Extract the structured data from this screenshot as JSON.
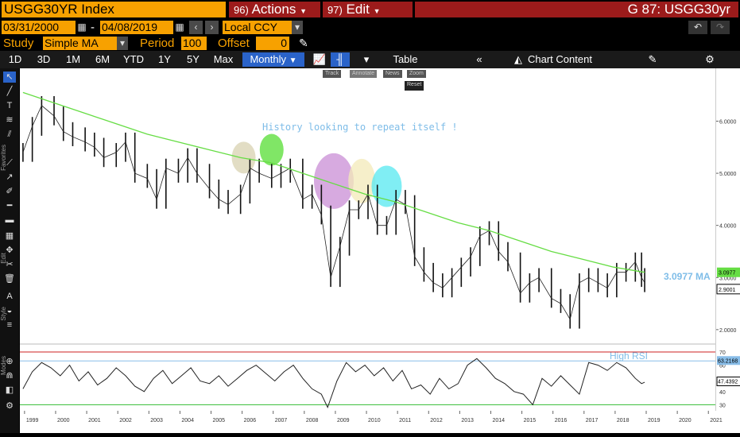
{
  "header": {
    "ticker": "USGG30YR Index",
    "actions_num": "96)",
    "actions_label": "Actions",
    "edit_num": "97)",
    "edit_label": "Edit",
    "page_title": "G 87: USGG30yr"
  },
  "date_row": {
    "start_date": "03/31/2000",
    "end_date": "04/08/2019",
    "separator": "-",
    "currency": "Local CCY"
  },
  "study_row": {
    "study_label": "Study",
    "study_value": "Simple MA",
    "period_label": "Period",
    "period_value": "100",
    "offset_label": "Offset",
    "offset_value": "0"
  },
  "toolbar": {
    "ranges": [
      "1D",
      "3D",
      "1M",
      "6M",
      "YTD",
      "1Y",
      "5Y",
      "Max"
    ],
    "frequency": "Monthly",
    "table_label": "Table",
    "chart_content_label": "Chart Content"
  },
  "mini_tools": [
    "Track",
    "Annotate",
    "News",
    "Zoom"
  ],
  "reset_label": "Reset",
  "left_labels": {
    "favorites": "Favorites",
    "edit": "Edit",
    "style": "Style",
    "modes": "Modes"
  },
  "colors": {
    "accent": "#f7a100",
    "header_red": "#9c1b1b",
    "ma": "#66dd44",
    "price": "#000000",
    "rsi": "#000000",
    "annotation_text": "#7fbde8"
  },
  "chart_data": [
    {
      "type": "line",
      "annotation": "History looking to repeat itself !",
      "ma_label": "3.0977 MA",
      "last_ma": "3.0977",
      "last_price": "2.9001",
      "yticks": [
        "6.0000",
        "5.0000",
        "4.0000",
        "3.0000",
        "2.0000"
      ],
      "ylim": [
        1.8,
        6.8
      ],
      "xticks": [
        "1999",
        "2000",
        "2001",
        "2002",
        "2003",
        "2004",
        "2005",
        "2006",
        "2007",
        "2008",
        "2009",
        "2010",
        "2011",
        "2012",
        "2013",
        "2014",
        "2015",
        "2016",
        "2017",
        "2018",
        "2019",
        "2020",
        "2021"
      ],
      "xlim": [
        1998.9,
        2021.3
      ],
      "highlights": [
        {
          "year": 2006.1,
          "value": 5.3,
          "color": "#d8d2b0"
        },
        {
          "year": 2007.0,
          "value": 5.45,
          "color": "#55dd33"
        },
        {
          "year": 2009.0,
          "value": 4.85,
          "color": "#c98ed6"
        },
        {
          "year": 2009.9,
          "value": 4.85,
          "color": "#f3e9b8"
        },
        {
          "year": 2010.7,
          "value": 4.75,
          "color": "#55e8f0"
        }
      ],
      "series": [
        {
          "name": "USGG30YR Index",
          "x": [
            1999.0,
            1999.3,
            1999.6,
            2000.0,
            2000.3,
            2000.6,
            2001.0,
            2001.3,
            2001.6,
            2002.0,
            2002.3,
            2002.6,
            2003.0,
            2003.3,
            2003.6,
            2004.0,
            2004.3,
            2004.6,
            2005.0,
            2005.3,
            2005.6,
            2006.0,
            2006.3,
            2006.6,
            2007.0,
            2007.3,
            2007.6,
            2008.0,
            2008.3,
            2008.6,
            2008.9,
            2009.2,
            2009.5,
            2009.8,
            2010.1,
            2010.4,
            2010.7,
            2011.0,
            2011.3,
            2011.6,
            2011.9,
            2012.2,
            2012.5,
            2012.8,
            2013.1,
            2013.4,
            2013.7,
            2014.0,
            2014.3,
            2014.6,
            2015.0,
            2015.3,
            2015.6,
            2016.0,
            2016.3,
            2016.6,
            2016.9,
            2017.2,
            2017.5,
            2017.8,
            2018.1,
            2018.4,
            2018.7,
            2018.9,
            2019.0
          ],
          "y": [
            5.4,
            5.9,
            6.3,
            6.1,
            5.8,
            5.7,
            5.6,
            5.5,
            5.3,
            5.4,
            5.6,
            5.0,
            4.9,
            4.5,
            5.1,
            5.0,
            5.3,
            5.0,
            4.7,
            4.5,
            4.4,
            4.6,
            5.1,
            5.0,
            4.9,
            5.0,
            5.1,
            4.5,
            4.6,
            4.2,
            3.0,
            3.6,
            4.3,
            4.3,
            4.6,
            4.0,
            4.0,
            4.5,
            4.4,
            3.4,
            3.1,
            2.9,
            2.8,
            3.0,
            3.2,
            3.4,
            3.8,
            3.9,
            3.5,
            3.3,
            2.7,
            2.9,
            3.0,
            2.6,
            2.5,
            2.2,
            2.9,
            3.0,
            2.9,
            2.8,
            3.1,
            3.1,
            3.3,
            3.0,
            2.9
          ]
        },
        {
          "name": "Simple MA 100",
          "x": [
            1999.0,
            2000.0,
            2001.0,
            2002.0,
            2003.0,
            2004.0,
            2005.0,
            2006.0,
            2007.0,
            2008.0,
            2009.0,
            2010.0,
            2011.0,
            2012.0,
            2013.0,
            2014.0,
            2015.0,
            2016.0,
            2017.0,
            2018.0,
            2019.0
          ],
          "y": [
            6.55,
            6.35,
            6.15,
            5.95,
            5.75,
            5.6,
            5.45,
            5.3,
            5.2,
            5.0,
            4.8,
            4.6,
            4.45,
            4.25,
            4.05,
            3.9,
            3.7,
            3.5,
            3.35,
            3.2,
            3.1
          ]
        }
      ]
    },
    {
      "type": "line",
      "title": "High RSI",
      "last_value": "47.4392",
      "upper_value": "63.2168",
      "yticks": [
        "70",
        "60",
        "50",
        "40",
        "30"
      ],
      "ylim": [
        26,
        73
      ],
      "xlim": [
        1998.9,
        2021.3
      ],
      "series": [
        {
          "name": "RSI",
          "x": [
            1999.0,
            1999.3,
            1999.6,
            1999.9,
            2000.2,
            2000.5,
            2000.8,
            2001.1,
            2001.4,
            2001.7,
            2002.0,
            2002.3,
            2002.6,
            2002.9,
            2003.2,
            2003.5,
            2003.8,
            2004.1,
            2004.4,
            2004.7,
            2005.0,
            2005.3,
            2005.6,
            2005.9,
            2006.2,
            2006.5,
            2006.8,
            2007.1,
            2007.4,
            2007.7,
            2008.0,
            2008.3,
            2008.6,
            2008.8,
            2009.1,
            2009.4,
            2009.7,
            2010.0,
            2010.3,
            2010.6,
            2010.9,
            2011.2,
            2011.5,
            2011.8,
            2012.1,
            2012.4,
            2012.7,
            2013.0,
            2013.3,
            2013.6,
            2013.9,
            2014.2,
            2014.5,
            2014.8,
            2015.1,
            2015.4,
            2015.7,
            2016.0,
            2016.3,
            2016.6,
            2016.9,
            2017.2,
            2017.5,
            2017.8,
            2018.1,
            2018.4,
            2018.7,
            2018.9,
            2019.0
          ],
          "y": [
            42,
            55,
            62,
            58,
            52,
            60,
            48,
            55,
            45,
            50,
            58,
            52,
            44,
            40,
            50,
            56,
            46,
            52,
            58,
            48,
            46,
            52,
            44,
            50,
            56,
            60,
            54,
            48,
            55,
            60,
            50,
            42,
            38,
            28,
            48,
            62,
            55,
            60,
            52,
            58,
            48,
            56,
            42,
            45,
            38,
            50,
            42,
            46,
            60,
            65,
            58,
            50,
            46,
            40,
            38,
            30,
            50,
            44,
            52,
            45,
            38,
            62,
            60,
            56,
            62,
            58,
            50,
            46,
            47
          ]
        }
      ]
    }
  ]
}
